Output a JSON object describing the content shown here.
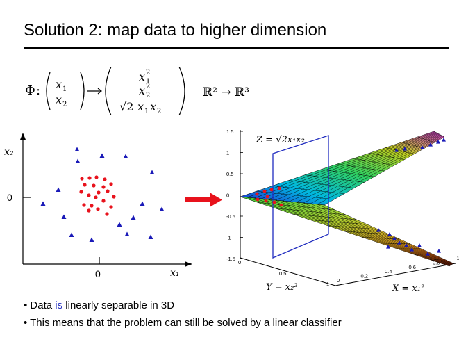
{
  "slide": {
    "title": "Solution 2: map data to higher dimension"
  },
  "formula": {
    "phi": "Φ",
    "x1": "x",
    "x2": "x",
    "sub1": "1",
    "sub2": "2",
    "sup2": "2",
    "sqrt2": "√2",
    "mapping": "ℝ² → ℝ³"
  },
  "left_plot": {
    "x_label": "x₁",
    "y_label": "x₂",
    "x_tick": "0",
    "y_tick": "0",
    "colors": {
      "class_a": "#e8121c",
      "class_b": "#1a1ab8"
    }
  },
  "right_plot": {
    "z_label": "Z = √2x₁x₂",
    "y_label": "Y = x₂²",
    "x_label": "X = x₁²",
    "z_ticks": [
      "1.5",
      "1",
      "0.5",
      "0",
      "-0.5",
      "-1",
      "-1.5"
    ],
    "y_ticks": [
      "0",
      "0.5",
      "1"
    ],
    "x_ticks": [
      "0",
      "0.2",
      "0.4",
      "0.6",
      "0.8",
      "1"
    ]
  },
  "bullets": {
    "b1_pre": "• Data ",
    "b1_highlight": "is",
    "b1_post": " linearly separable in 3D",
    "b2": "• This means that the problem can still be solved by a linear classifier"
  }
}
